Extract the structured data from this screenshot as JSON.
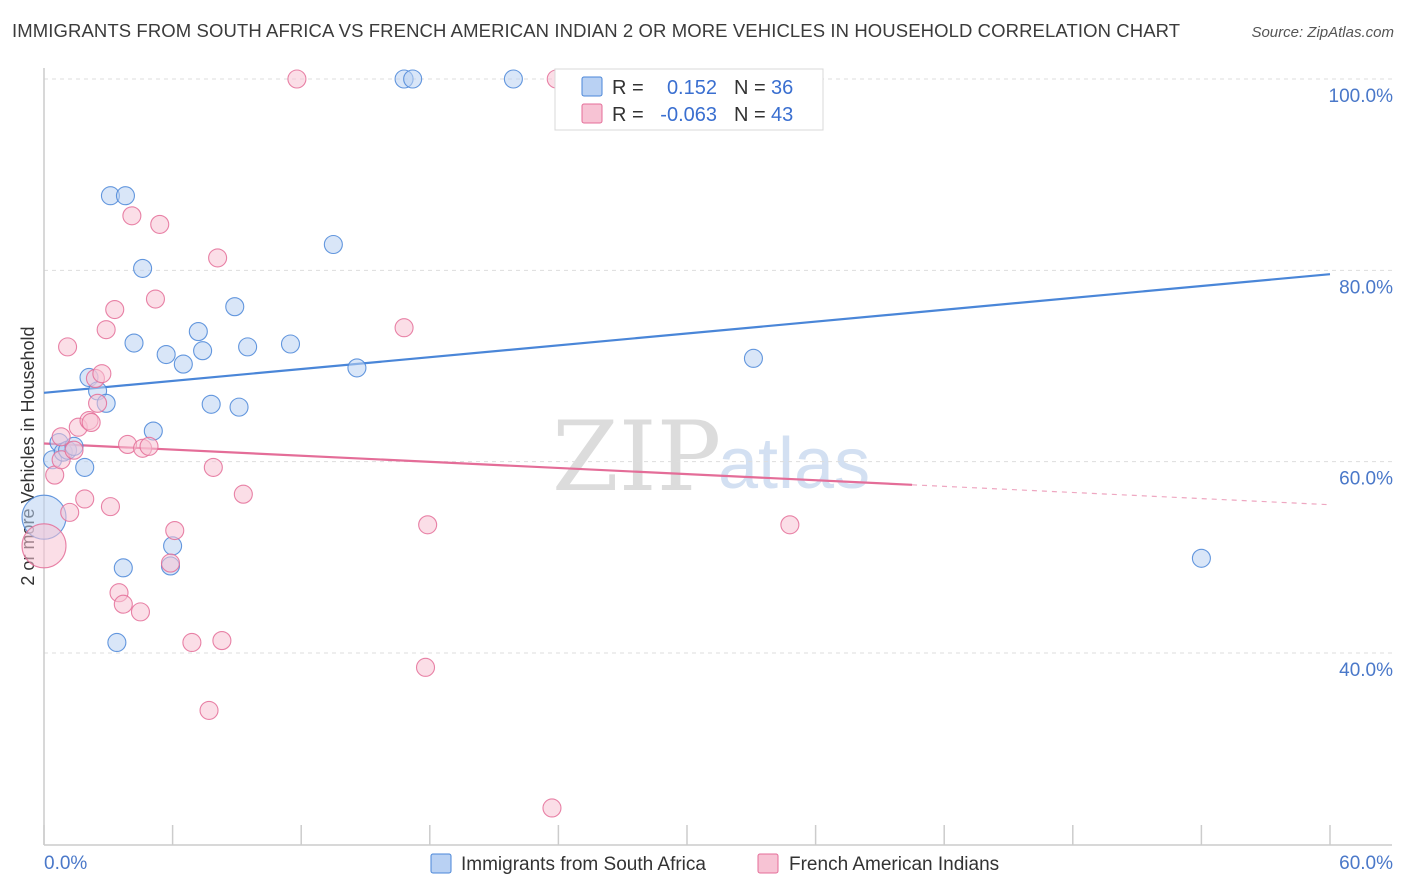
{
  "title": "IMMIGRANTS FROM SOUTH AFRICA VS FRENCH AMERICAN INDIAN 2 OR MORE VEHICLES IN HOUSEHOLD CORRELATION CHART",
  "source": "Source: ZipAtlas.com",
  "watermark": {
    "zip": "ZIP",
    "atlas": "atlas"
  },
  "colors": {
    "blue": "#4a86d8",
    "blue_fill": "#b9d1f3",
    "pink": "#e46d98",
    "pink_fill": "#f7c3d4",
    "tick_label": "#4a78c9",
    "grid": "#dddddd"
  },
  "chart_data": {
    "type": "scatter",
    "title": "IMMIGRANTS FROM SOUTH AFRICA VS FRENCH AMERICAN INDIAN 2 OR MORE VEHICLES IN HOUSEHOLD CORRELATION CHART",
    "xlabel": "",
    "ylabel": "2 or more Vehicles in Household",
    "xlim": [
      0,
      60
    ],
    "ylim": [
      20,
      104
    ],
    "x_tick_labels": [
      "0.0%",
      "60.0%"
    ],
    "y_ticks": [
      40,
      60,
      80,
      100
    ],
    "y_tick_labels": [
      "40.0%",
      "60.0%",
      "80.0%",
      "100.0%"
    ],
    "legend": {
      "rows": [
        {
          "r_label": "R =",
          "r_value": "0.152",
          "n_label": "N =",
          "n_value": "36"
        },
        {
          "r_label": "R =",
          "r_value": "-0.063",
          "n_label": "N =",
          "n_value": "43"
        }
      ]
    },
    "series": [
      {
        "name": "Immigrants from South Africa",
        "color": "blue",
        "trend": {
          "x": [
            0,
            60
          ],
          "y": [
            67.2,
            79.6
          ],
          "solid_until": 60
        },
        "points": [
          {
            "x": 0.0,
            "y": 54.2,
            "big": true
          },
          {
            "x": 0.4,
            "y": 60.2
          },
          {
            "x": 0.7,
            "y": 62.0
          },
          {
            "x": 0.9,
            "y": 61.0
          },
          {
            "x": 1.1,
            "y": 61.2
          },
          {
            "x": 1.4,
            "y": 61.6
          },
          {
            "x": 1.9,
            "y": 59.4
          },
          {
            "x": 2.1,
            "y": 68.8
          },
          {
            "x": 2.5,
            "y": 67.4
          },
          {
            "x": 2.9,
            "y": 66.1
          },
          {
            "x": 3.1,
            "y": 87.8
          },
          {
            "x": 3.8,
            "y": 87.8
          },
          {
            "x": 3.7,
            "y": 48.9
          },
          {
            "x": 3.4,
            "y": 41.1
          },
          {
            "x": 4.2,
            "y": 72.4
          },
          {
            "x": 4.6,
            "y": 80.2
          },
          {
            "x": 5.1,
            "y": 63.2
          },
          {
            "x": 5.7,
            "y": 71.2
          },
          {
            "x": 5.9,
            "y": 49.1
          },
          {
            "x": 6.0,
            "y": 51.2
          },
          {
            "x": 6.5,
            "y": 70.2
          },
          {
            "x": 7.2,
            "y": 73.6
          },
          {
            "x": 7.4,
            "y": 71.6
          },
          {
            "x": 7.8,
            "y": 66.0
          },
          {
            "x": 8.9,
            "y": 76.2
          },
          {
            "x": 9.1,
            "y": 65.7
          },
          {
            "x": 9.5,
            "y": 72.0
          },
          {
            "x": 11.5,
            "y": 72.3
          },
          {
            "x": 13.5,
            "y": 82.7
          },
          {
            "x": 14.6,
            "y": 69.8
          },
          {
            "x": 16.8,
            "y": 100.0
          },
          {
            "x": 17.2,
            "y": 100.0
          },
          {
            "x": 21.9,
            "y": 100.0
          },
          {
            "x": 33.1,
            "y": 70.8
          },
          {
            "x": 54.0,
            "y": 49.9
          }
        ]
      },
      {
        "name": "French American Indians",
        "color": "pink",
        "trend": {
          "x": [
            0,
            60
          ],
          "y": [
            61.9,
            55.5
          ],
          "solid_until": 40.5
        },
        "points": [
          {
            "x": 0.0,
            "y": 51.2,
            "big": true
          },
          {
            "x": 0.5,
            "y": 58.6
          },
          {
            "x": 0.8,
            "y": 60.2
          },
          {
            "x": 0.8,
            "y": 62.6
          },
          {
            "x": 1.1,
            "y": 72.0
          },
          {
            "x": 1.2,
            "y": 54.7
          },
          {
            "x": 1.4,
            "y": 61.2
          },
          {
            "x": 1.6,
            "y": 63.6
          },
          {
            "x": 1.9,
            "y": 56.1
          },
          {
            "x": 2.1,
            "y": 64.3
          },
          {
            "x": 2.2,
            "y": 64.1
          },
          {
            "x": 2.4,
            "y": 68.7
          },
          {
            "x": 2.7,
            "y": 69.2
          },
          {
            "x": 2.5,
            "y": 66.1
          },
          {
            "x": 2.9,
            "y": 73.8
          },
          {
            "x": 3.1,
            "y": 55.3
          },
          {
            "x": 3.3,
            "y": 75.9
          },
          {
            "x": 3.5,
            "y": 46.3
          },
          {
            "x": 3.7,
            "y": 45.1
          },
          {
            "x": 3.9,
            "y": 61.8
          },
          {
            "x": 4.1,
            "y": 85.7
          },
          {
            "x": 4.6,
            "y": 61.4
          },
          {
            "x": 4.5,
            "y": 44.3
          },
          {
            "x": 4.9,
            "y": 61.6
          },
          {
            "x": 5.2,
            "y": 77.0
          },
          {
            "x": 5.4,
            "y": 84.8
          },
          {
            "x": 5.9,
            "y": 49.4
          },
          {
            "x": 6.1,
            "y": 52.8
          },
          {
            "x": 6.9,
            "y": 41.1
          },
          {
            "x": 7.7,
            "y": 34.0
          },
          {
            "x": 7.9,
            "y": 59.4
          },
          {
            "x": 8.1,
            "y": 81.3
          },
          {
            "x": 8.3,
            "y": 41.3
          },
          {
            "x": 9.3,
            "y": 56.6
          },
          {
            "x": 11.8,
            "y": 100.0
          },
          {
            "x": 16.8,
            "y": 74.0
          },
          {
            "x": 17.8,
            "y": 38.5
          },
          {
            "x": 17.9,
            "y": 53.4
          },
          {
            "x": 23.9,
            "y": 100.0
          },
          {
            "x": 23.7,
            "y": 23.8
          },
          {
            "x": 34.8,
            "y": 53.4
          }
        ]
      }
    ]
  }
}
